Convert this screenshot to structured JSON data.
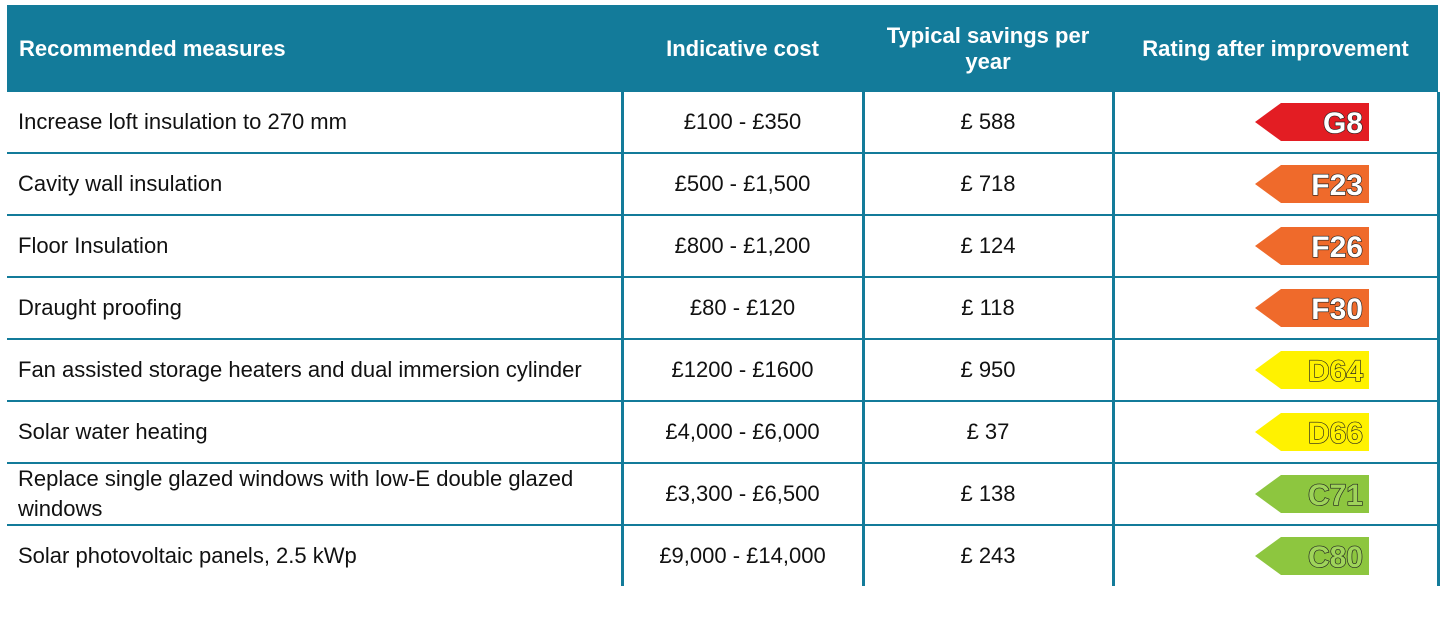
{
  "table": {
    "header": [
      "Recommended measures",
      "Indicative cost",
      "Typical savings per year",
      "Rating after improvement"
    ],
    "rows": [
      {
        "measure": "Increase loft insulation to 270 mm",
        "cost": "£100 - £350",
        "savings": "£ 588",
        "rating": "G8",
        "color": "#e31d23"
      },
      {
        "measure": "Cavity wall insulation",
        "cost": "£500 - £1,500",
        "savings": "£ 718",
        "rating": "F23",
        "color": "#ef6a2b"
      },
      {
        "measure": "Floor Insulation",
        "cost": "£800 - £1,200",
        "savings": "£ 124",
        "rating": "F26",
        "color": "#ef6a2b"
      },
      {
        "measure": "Draught proofing",
        "cost": "£80 - £120",
        "savings": "£ 118",
        "rating": "F30",
        "color": "#ef6a2b"
      },
      {
        "measure": "Fan assisted storage heaters and dual immersion cylinder",
        "cost": "£1200 - £1600",
        "savings": "£ 950",
        "rating": "D64",
        "color": "#fff200"
      },
      {
        "measure": "Solar water heating",
        "cost": "£4,000 - £6,000",
        "savings": "£ 37",
        "rating": "D66",
        "color": "#fff200"
      },
      {
        "measure": "Replace single glazed windows with low-E double glazed windows",
        "cost": "£3,300 - £6,500",
        "savings": "£ 138",
        "rating": "C71",
        "color": "#8dc63f"
      },
      {
        "measure": "Solar photovoltaic panels, 2.5 kWp",
        "cost": "£9,000 - £14,000",
        "savings": "£ 243",
        "rating": "C80",
        "color": "#8dc63f"
      }
    ]
  }
}
